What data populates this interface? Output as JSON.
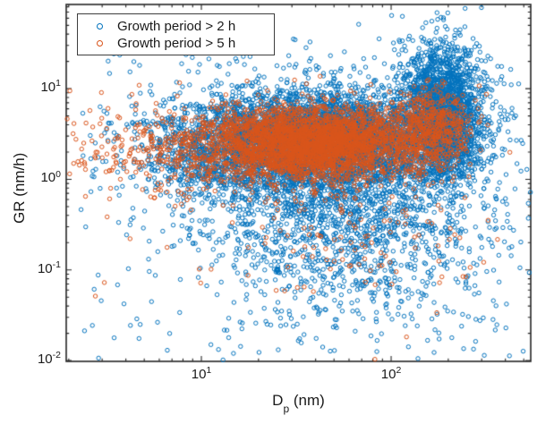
{
  "figure": {
    "background": "#ffffff",
    "axes_color": "#262626",
    "text_color": "#1a1a1a"
  },
  "chart_data": {
    "type": "scatter",
    "title": "",
    "x_axis": {
      "label_main": "D",
      "label_sub": "p",
      "label_rest": " (nm)",
      "scale": "log",
      "range": [
        1.94,
        544
      ],
      "major_ticks": [
        {
          "base": "10",
          "exp": "1",
          "value": 10
        },
        {
          "base": "10",
          "exp": "2",
          "value": 100
        }
      ]
    },
    "y_axis": {
      "label": "GR (nm/h)",
      "scale": "log",
      "range": [
        0.0098,
        85
      ],
      "major_ticks": [
        {
          "base": "10",
          "exp": "1",
          "value": 10
        },
        {
          "base": "10",
          "exp": "0",
          "value": 1
        },
        {
          "base": "10",
          "exp": "-1",
          "value": 0.1
        },
        {
          "base": "10",
          "exp": "-2",
          "value": 0.01
        }
      ]
    },
    "legend": {
      "position": "top-left",
      "entries": [
        {
          "label": "Growth period > 2 h",
          "color": "#0072BD"
        },
        {
          "label": "Growth period > 5 h",
          "color": "#D95319"
        }
      ]
    },
    "marker": {
      "shape": "open-circle",
      "radius_px": 2.2,
      "stroke_px": 1
    },
    "generator_seed": 20240613,
    "cluster_units": "log10(Dp in nm) x, log10(GR in nm/h) y; gaussian clusters unless uniform",
    "series": [
      {
        "name": "Growth period > 2 h",
        "color": "#0072BD",
        "clusters": [
          {
            "n": 4200,
            "cx": 1.62,
            "sx": 0.3,
            "cy": 0.42,
            "sy": 0.28
          },
          {
            "n": 2200,
            "cx": 2.27,
            "sx": 0.11,
            "cy": 0.72,
            "sy": 0.38
          },
          {
            "n": 1800,
            "cx": 1.75,
            "sx": 0.42,
            "cy": -0.35,
            "sy": 0.62
          },
          {
            "n": 700,
            "cx": 1.05,
            "sx": 0.22,
            "cy": 0.3,
            "sy": 0.28
          },
          {
            "n": 260,
            "uniform": true,
            "x": [
              0.35,
              2.7
            ],
            "y": [
              -2.0,
              1.55
            ]
          }
        ]
      },
      {
        "name": "Growth period > 5 h",
        "color": "#D95319",
        "clusters": [
          {
            "n": 3000,
            "cx": 1.6,
            "sx": 0.26,
            "cy": 0.4,
            "sy": 0.2
          },
          {
            "n": 520,
            "cx": 2.21,
            "sx": 0.1,
            "cy": 0.55,
            "sy": 0.22
          },
          {
            "n": 430,
            "cx": 0.95,
            "sx": 0.28,
            "cy": 0.35,
            "sy": 0.22
          },
          {
            "n": 120,
            "cx": 1.8,
            "sx": 0.3,
            "cy": -0.4,
            "sy": 0.45
          },
          {
            "n": 60,
            "uniform": true,
            "x": [
              0.35,
              2.55
            ],
            "y": [
              -1.3,
              1.1
            ]
          }
        ]
      }
    ]
  }
}
